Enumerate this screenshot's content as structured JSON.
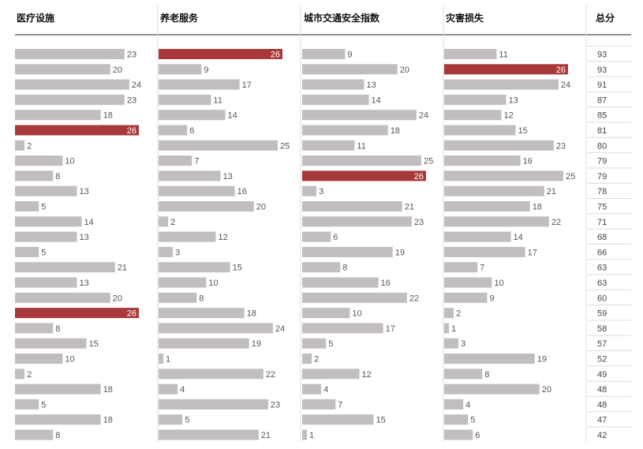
{
  "chart_data": {
    "type": "bar",
    "columns": [
      "医疗设施",
      "养老服务",
      "城市交通安全指数",
      "灾害损失"
    ],
    "total_label": "总分",
    "series": [
      {
        "values": [
          23,
          20,
          24,
          23,
          18,
          26,
          2,
          10,
          8,
          13,
          5,
          14,
          13,
          5,
          21,
          13,
          20,
          26,
          8,
          15,
          10,
          2,
          18,
          5,
          18,
          8
        ]
      },
      {
        "values": [
          26,
          9,
          17,
          11,
          14,
          6,
          25,
          7,
          13,
          16,
          20,
          2,
          12,
          3,
          15,
          10,
          8,
          18,
          24,
          19,
          1,
          22,
          4,
          23,
          5,
          21
        ]
      },
      {
        "values": [
          9,
          20,
          13,
          14,
          24,
          18,
          11,
          25,
          26,
          3,
          21,
          23,
          6,
          19,
          8,
          16,
          22,
          10,
          17,
          5,
          2,
          12,
          4,
          7,
          15,
          1
        ]
      },
      {
        "values": [
          11,
          26,
          24,
          13,
          12,
          15,
          23,
          16,
          25,
          21,
          18,
          22,
          14,
          17,
          7,
          10,
          9,
          2,
          1,
          3,
          19,
          8,
          20,
          4,
          5,
          6
        ]
      }
    ],
    "totals": [
      93,
      93,
      91,
      87,
      85,
      81,
      80,
      79,
      79,
      78,
      75,
      71,
      68,
      66,
      63,
      63,
      60,
      59,
      58,
      57,
      52,
      49,
      48,
      48,
      47,
      42
    ],
    "max_value": 26,
    "colors": {
      "bar": "#c3bebe",
      "highlight": "#a8393a",
      "grid": "#dcdcdc"
    }
  }
}
